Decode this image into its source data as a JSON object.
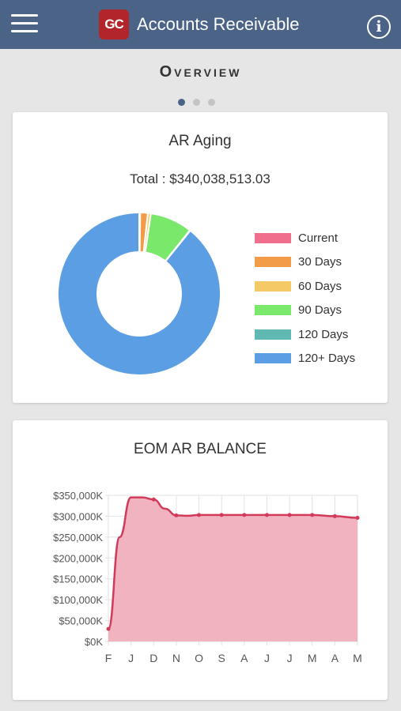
{
  "header": {
    "logo_text": "GC",
    "title": "Accounts Receivable",
    "info_label": "i",
    "menu_icon": "hamburger-menu-icon",
    "info_icon": "info-circle-icon",
    "background_color": "#4b6386"
  },
  "overview": {
    "label": "Overview",
    "pages": 3,
    "active_page": 1
  },
  "ar_aging": {
    "title": "AR Aging",
    "total_label": "Total : $340,038,513.03"
  },
  "eom_balance": {
    "title": "EOM AR BALANCE"
  },
  "chart_data": [
    {
      "type": "pie",
      "variant": "donut",
      "title": "AR Aging",
      "labels": [
        "Current",
        "30 Days",
        "60 Days",
        "90 Days",
        "120 Days",
        "120+ Days"
      ],
      "values": [
        0.2,
        1.5,
        0.6,
        8.4,
        0.1,
        89.2
      ],
      "colors": [
        "#ef6f8c",
        "#f29b49",
        "#f5c966",
        "#7ae86a",
        "#5fb8b2",
        "#5b9ee4"
      ],
      "legend": "right"
    },
    {
      "type": "area",
      "title": "EOM AR BALANCE",
      "categories": [
        "F",
        "J",
        "D",
        "N",
        "O",
        "S",
        "A",
        "J",
        "J",
        "M",
        "A",
        "M"
      ],
      "points": [
        {
          "x": 0,
          "y": 30000
        },
        {
          "x": 0.5,
          "y": 250000
        },
        {
          "x": 1,
          "y": 345000
        },
        {
          "x": 1.5,
          "y": 345000
        },
        {
          "x": 2,
          "y": 340000
        },
        {
          "x": 2.5,
          "y": 318000
        },
        {
          "x": 3,
          "y": 302000
        },
        {
          "x": 3.5,
          "y": 301000
        },
        {
          "x": 4,
          "y": 303000
        },
        {
          "x": 5,
          "y": 303000
        },
        {
          "x": 6,
          "y": 303000
        },
        {
          "x": 7,
          "y": 303000
        },
        {
          "x": 8,
          "y": 303000
        },
        {
          "x": 9,
          "y": 303000
        },
        {
          "x": 10,
          "y": 300000
        },
        {
          "x": 11,
          "y": 296000
        }
      ],
      "ylim": [
        0,
        350000
      ],
      "yticks": [
        0,
        50000,
        100000,
        150000,
        200000,
        250000,
        300000,
        350000
      ],
      "ytick_labels": [
        "$0K",
        "$50,000K",
        "$100,000K",
        "$150,000K",
        "$200,000K",
        "$250,000K",
        "$300,000K",
        "$350,000K"
      ],
      "line_color": "#d23a5a",
      "fill_color": "#f2b3c0",
      "grid": true,
      "legend": "none"
    }
  ]
}
